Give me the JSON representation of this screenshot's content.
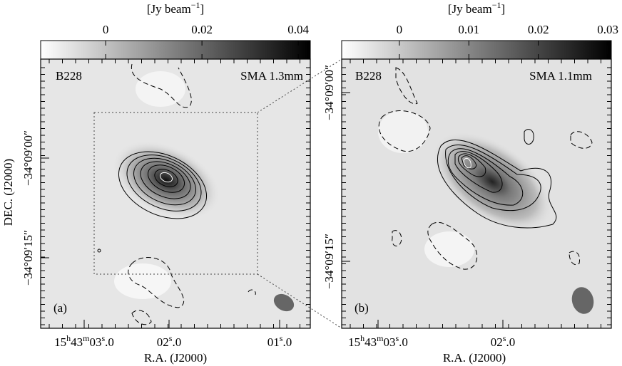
{
  "panels": [
    {
      "source": "B228",
      "instrument": "SMA 1.3mm",
      "tag": "(a)",
      "colorbar": {
        "unit": [
          "[Jy beam",
          "−1",
          "]"
        ],
        "lim": [
          -0.0135,
          0.0425
        ],
        "ticks": [
          0,
          0.02,
          0.04
        ]
      },
      "x_label": "R.A. (J2000)",
      "y_label": "DEC. (J2000)",
      "ra_ticks": [
        [
          "15",
          "h",
          "43",
          "m",
          "03",
          "s",
          ".0"
        ],
        [
          "02",
          "s",
          ".0"
        ],
        [
          "01",
          "s",
          ".0"
        ]
      ],
      "dec_ticks": [
        "−34°09′00″",
        "−34°09′15″"
      ]
    },
    {
      "source": "B228",
      "instrument": "SMA 1.1mm",
      "tag": "(b)",
      "colorbar": {
        "unit": [
          "[Jy beam",
          "−1",
          "]"
        ],
        "lim": [
          -0.0083,
          0.0305
        ],
        "ticks": [
          0,
          0.01,
          0.02,
          0.03
        ]
      },
      "x_label": "R.A. (J2000)",
      "ra_ticks": [
        [
          "15",
          "h",
          "43",
          "m",
          "03",
          "s",
          ".0"
        ],
        [
          "02",
          "s",
          ".0"
        ]
      ],
      "dec_ticks": [
        "−34°09′00″",
        "−34°09′15″"
      ]
    }
  ]
}
